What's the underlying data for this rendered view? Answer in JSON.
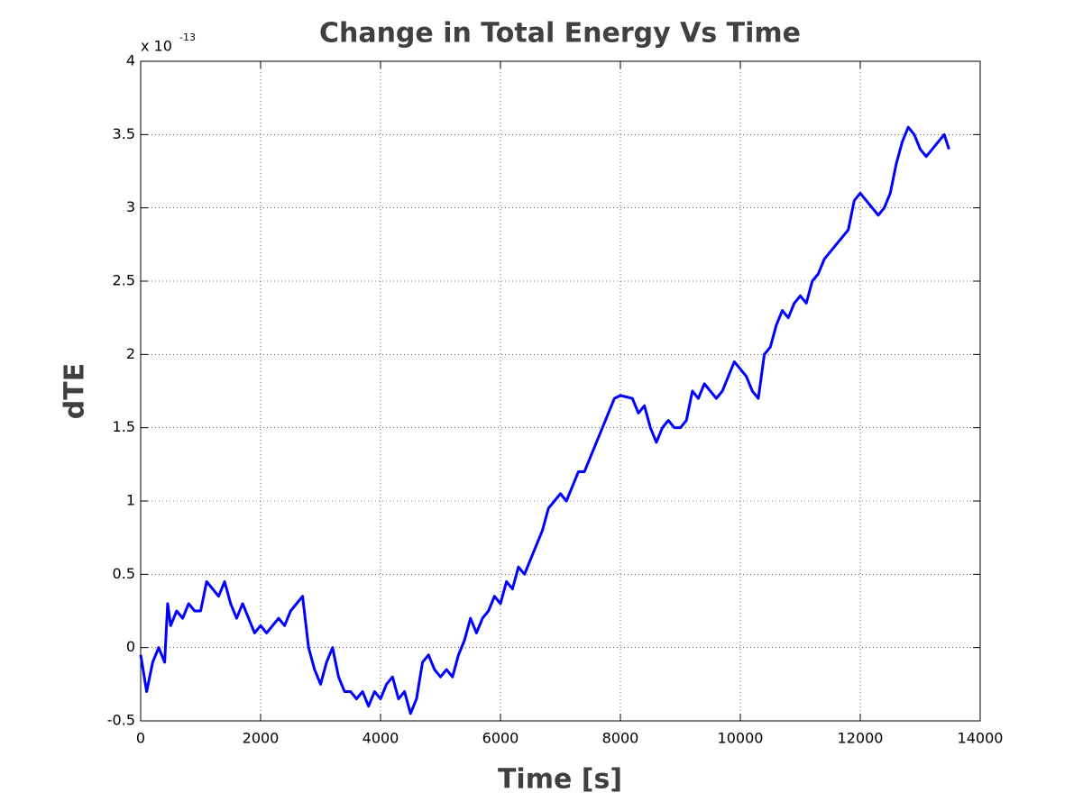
{
  "chart_data": {
    "type": "line",
    "title": "Change in Total Energy Vs Time",
    "x_label": "Time [s]",
    "y_label": "dTE",
    "y_multiplier": {
      "base": "x 10",
      "exponent": "-13"
    },
    "xlim": [
      0,
      14000
    ],
    "ylim": [
      -0.5,
      4
    ],
    "xticks": [
      0,
      2000,
      4000,
      6000,
      8000,
      10000,
      12000,
      14000
    ],
    "yticks": [
      -0.5,
      0,
      0.5,
      1,
      1.5,
      2,
      2.5,
      3,
      3.5,
      4
    ],
    "grid": true,
    "x": [
      0,
      100,
      200,
      300,
      400,
      450,
      500,
      600,
      700,
      800,
      900,
      1000,
      1100,
      1200,
      1300,
      1400,
      1500,
      1600,
      1700,
      1800,
      1900,
      2000,
      2100,
      2200,
      2300,
      2400,
      2500,
      2600,
      2700,
      2800,
      2900,
      3000,
      3100,
      3200,
      3300,
      3400,
      3500,
      3600,
      3700,
      3800,
      3900,
      4000,
      4100,
      4200,
      4300,
      4400,
      4500,
      4600,
      4700,
      4800,
      4900,
      5000,
      5100,
      5200,
      5300,
      5400,
      5500,
      5600,
      5700,
      5800,
      5900,
      6000,
      6100,
      6200,
      6300,
      6400,
      6500,
      6600,
      6700,
      6800,
      6900,
      7000,
      7100,
      7200,
      7300,
      7400,
      7500,
      7600,
      7700,
      7800,
      7900,
      8000,
      8200,
      8300,
      8400,
      8500,
      8600,
      8700,
      8800,
      8900,
      9000,
      9100,
      9200,
      9300,
      9400,
      9500,
      9600,
      9700,
      9800,
      9900,
      10000,
      10100,
      10200,
      10300,
      10400,
      10500,
      10600,
      10700,
      10800,
      10900,
      11000,
      11100,
      11200,
      11300,
      11400,
      11500,
      11600,
      11700,
      11800,
      11900,
      12000,
      12100,
      12200,
      12300,
      12400,
      12500,
      12600,
      12700,
      12800,
      12900,
      13000,
      13100,
      13200,
      13300,
      13400,
      13480
    ],
    "series": [
      {
        "color": "#0000ff",
        "values": [
          -0.05,
          -0.3,
          -0.1,
          0.0,
          -0.1,
          0.3,
          0.15,
          0.25,
          0.2,
          0.3,
          0.25,
          0.25,
          0.45,
          0.4,
          0.35,
          0.45,
          0.3,
          0.2,
          0.3,
          0.2,
          0.1,
          0.15,
          0.1,
          0.15,
          0.2,
          0.15,
          0.25,
          0.3,
          0.35,
          0.0,
          -0.15,
          -0.25,
          -0.1,
          0.0,
          -0.2,
          -0.3,
          -0.3,
          -0.35,
          -0.3,
          -0.4,
          -0.3,
          -0.35,
          -0.25,
          -0.2,
          -0.35,
          -0.3,
          -0.45,
          -0.35,
          -0.1,
          -0.05,
          -0.15,
          -0.2,
          -0.15,
          -0.2,
          -0.05,
          0.05,
          0.2,
          0.1,
          0.2,
          0.25,
          0.35,
          0.3,
          0.45,
          0.4,
          0.55,
          0.5,
          0.6,
          0.7,
          0.8,
          0.95,
          1.0,
          1.05,
          1.0,
          1.1,
          1.2,
          1.2,
          1.3,
          1.4,
          1.5,
          1.6,
          1.7,
          1.72,
          1.7,
          1.6,
          1.65,
          1.5,
          1.4,
          1.5,
          1.55,
          1.5,
          1.5,
          1.55,
          1.75,
          1.7,
          1.8,
          1.75,
          1.7,
          1.75,
          1.85,
          1.95,
          1.9,
          1.85,
          1.75,
          1.7,
          2.0,
          2.05,
          2.2,
          2.3,
          2.25,
          2.35,
          2.4,
          2.35,
          2.5,
          2.55,
          2.65,
          2.7,
          2.75,
          2.8,
          2.85,
          3.05,
          3.1,
          3.05,
          3.0,
          2.95,
          3.0,
          3.1,
          3.3,
          3.45,
          3.55,
          3.5,
          3.4,
          3.35,
          3.4,
          3.45,
          3.5,
          3.4
        ]
      }
    ]
  }
}
